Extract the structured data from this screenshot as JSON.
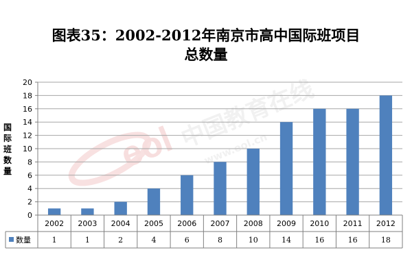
{
  "chart_data": {
    "type": "bar",
    "title": "图表35：2002-2012年南京市高中国际班项目",
    "subtitle": "总数量",
    "ylabel": "国际班数量",
    "xlabel": "",
    "categories": [
      "2002",
      "2003",
      "2004",
      "2005",
      "2006",
      "2007",
      "2008",
      "2009",
      "2010",
      "2011",
      "2012"
    ],
    "series": [
      {
        "name": "数量",
        "values": [
          1,
          1,
          2,
          4,
          6,
          8,
          10,
          14,
          16,
          16,
          18
        ]
      }
    ],
    "ylim": [
      0,
      20
    ],
    "yticks": [
      "0",
      "2",
      "4",
      "6",
      "8",
      "10",
      "12",
      "14",
      "16",
      "18",
      "20"
    ],
    "grid": true,
    "legend_placement": "data-table-left",
    "data_table": true,
    "colors": {
      "bar": "#4f81bd",
      "grid": "#a6a6a6",
      "axis": "#7f7f7f"
    }
  },
  "watermark": {
    "text_cn": "中国教育在线",
    "text_en": "www.eol.cn",
    "logo": "eol"
  }
}
